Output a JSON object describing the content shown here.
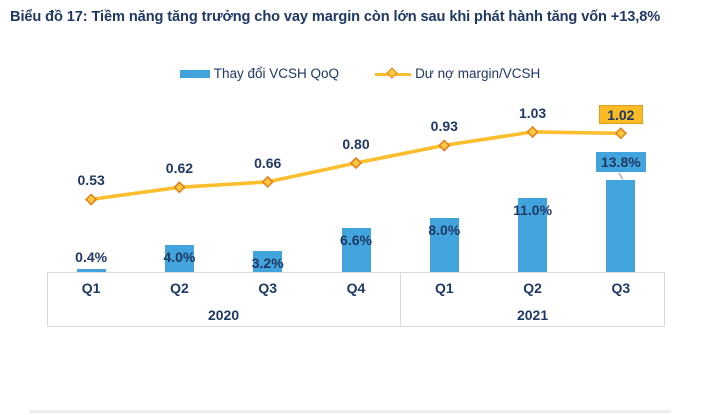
{
  "title": "Biểu đồ 17: Tiềm năng tăng trưởng cho vay margin còn lớn sau khi phát hành tăng vốn +13,8%",
  "legend": {
    "bar_label": "Thay đổi VCSH QoQ",
    "line_label": "Dư nợ margin/VCSH"
  },
  "colors": {
    "text": "#1F3864",
    "bar": "#41A4DC",
    "line": "#FBBE2E",
    "marker_fill": "#FBC93F",
    "marker_stroke": "#E2821F",
    "gold_box_fill": "#FBBB24",
    "gold_box_border": "#DD9E1E",
    "axis_border": "#D9D9D9",
    "connector": "#ADADAD"
  },
  "chart_data": {
    "type": "bar+line combo",
    "categories": [
      "Q1",
      "Q2",
      "Q3",
      "Q4",
      "Q1",
      "Q2",
      "Q3"
    ],
    "year_groups": [
      {
        "label": "2020",
        "span": 4
      },
      {
        "label": "2021",
        "span": 3
      }
    ],
    "series": [
      {
        "name": "Thay đổi VCSH QoQ",
        "type": "bar",
        "unit": "%",
        "values": [
          0.4,
          4.0,
          3.2,
          6.6,
          8.0,
          11.0,
          13.8
        ],
        "labels": [
          "0.4%",
          "4.0%",
          "3.2%",
          "6.6%",
          "8.0%",
          "11.0%",
          "13.8%"
        ]
      },
      {
        "name": "Dư nợ margin/VCSH",
        "type": "line",
        "values": [
          0.53,
          0.62,
          0.66,
          0.8,
          0.93,
          1.03,
          1.02
        ],
        "labels": [
          "0.53",
          "0.62",
          "0.66",
          "0.80",
          "0.93",
          "1.03",
          "1.02"
        ]
      }
    ],
    "highlight": {
      "bar_label_boxed_index": 6,
      "line_label_boxed_index": 6
    },
    "grid": "off",
    "legend_position": "top-center"
  }
}
